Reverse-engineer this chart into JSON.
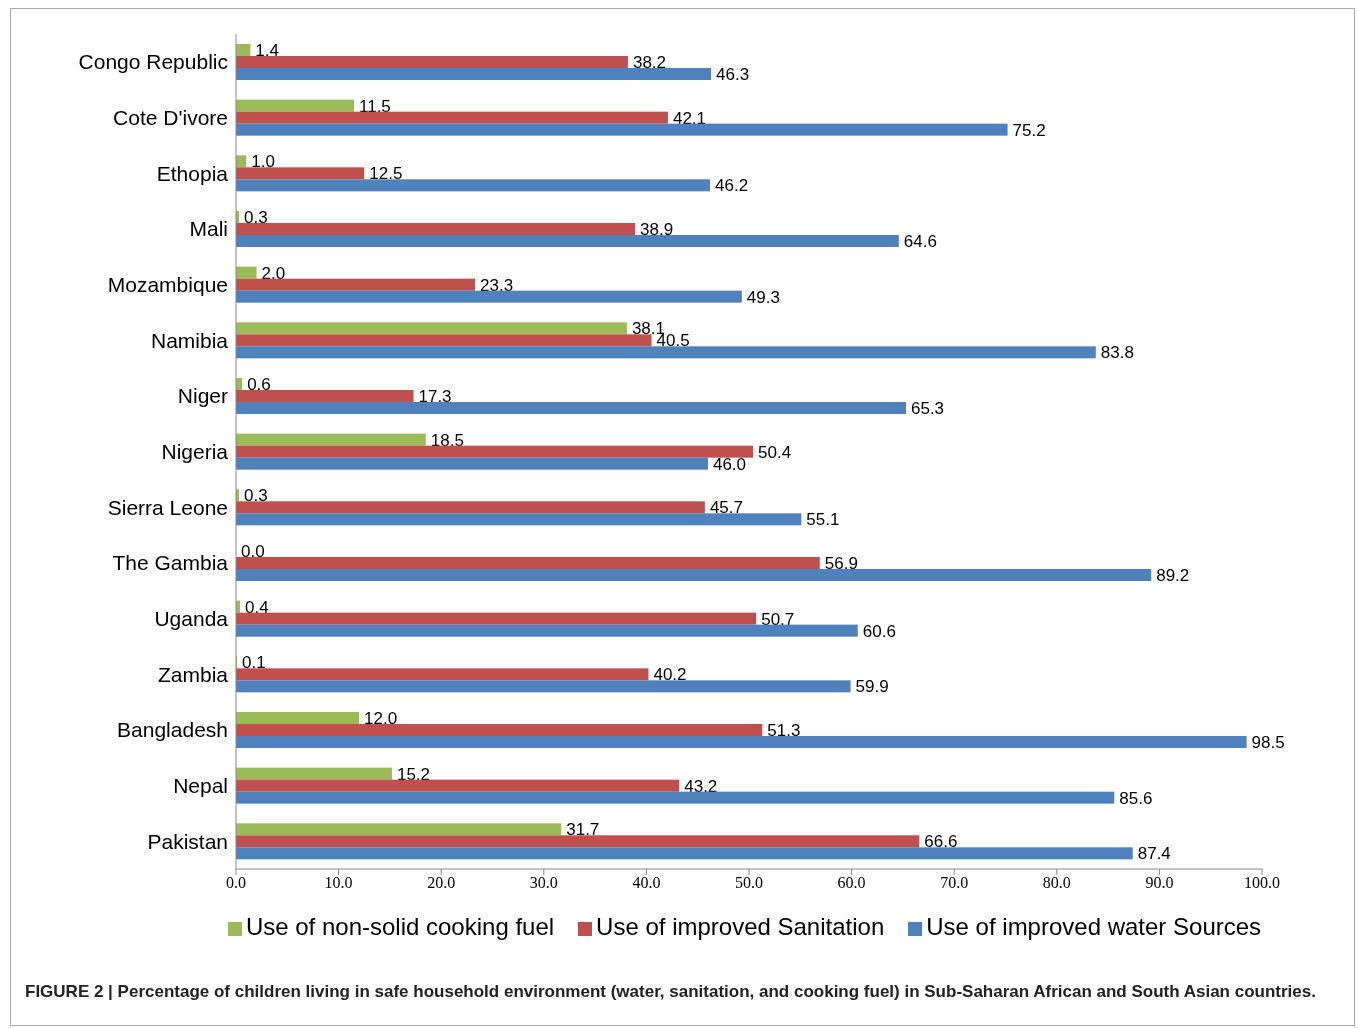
{
  "chart_data": {
    "type": "bar",
    "orientation": "horizontal",
    "categories": [
      "Congo Republic",
      "Cote D'ivore",
      "Ethopia",
      "Mali",
      "Mozambique",
      "Namibia",
      "Niger",
      "Nigeria",
      "Sierra Leone",
      "The Gambia",
      "Uganda",
      "Zambia",
      "Bangladesh",
      "Nepal",
      "Pakistan"
    ],
    "series": [
      {
        "name": "Use of non-solid cooking fuel",
        "color": "#9bbb59",
        "values": [
          1.4,
          11.5,
          1.0,
          0.3,
          2.0,
          38.1,
          0.6,
          18.5,
          0.3,
          0.0,
          0.4,
          0.1,
          12.0,
          15.2,
          31.7
        ],
        "value_labels": [
          "1.4",
          "11.5",
          "1.0",
          "0.3",
          "2.0",
          "38.1",
          "0.6",
          "18.5",
          "0.3",
          "0.0",
          "0.4",
          "0.1",
          "12.0",
          "15.2",
          "31.7"
        ]
      },
      {
        "name": "Use of improved  Sanitation",
        "color": "#c0504d",
        "values": [
          38.2,
          42.1,
          12.5,
          38.9,
          23.3,
          40.5,
          17.3,
          50.4,
          45.7,
          56.9,
          50.7,
          40.2,
          51.3,
          43.2,
          66.6
        ],
        "value_labels": [
          "38.2",
          "42.1",
          "12.5",
          "38.9",
          "23.3",
          "40.5",
          "17.3",
          "50.4",
          "45.7",
          "56.9",
          "50.7",
          "40.2",
          "51.3",
          "43.2",
          "66.6"
        ]
      },
      {
        "name": "Use of improved water Sources",
        "color": "#4f81bd",
        "values": [
          46.3,
          75.2,
          46.2,
          64.6,
          49.3,
          83.8,
          65.3,
          46.0,
          55.1,
          89.2,
          60.6,
          59.9,
          98.5,
          85.6,
          87.4
        ],
        "value_labels": [
          "46.3",
          "75.2",
          "46.2",
          "64.6",
          "49.3",
          "83.8",
          "65.3",
          "46.0",
          "55.1",
          "89.2",
          "60.6",
          "59.9",
          "98.5",
          "85.6",
          "87.4"
        ]
      }
    ],
    "xlim": [
      0,
      100
    ],
    "xticks": [
      {
        "value": 0,
        "label": "0.0"
      },
      {
        "value": 10,
        "label": "10.0"
      },
      {
        "value": 20,
        "label": "20.0"
      },
      {
        "value": 30,
        "label": "30.0"
      },
      {
        "value": 40,
        "label": "40.0"
      },
      {
        "value": 50,
        "label": "50.0"
      },
      {
        "value": 60,
        "label": "60.0"
      },
      {
        "value": 70,
        "label": "70.0"
      },
      {
        "value": 80,
        "label": "80.0"
      },
      {
        "value": 90,
        "label": "90.0"
      },
      {
        "value": 100,
        "label": "100.0"
      }
    ],
    "legend": "bottom",
    "annotations": [
      "FIGURE 2 | Percentage of children living in safe household environment (water, sanitation, and cooking fuel) in Sub-Saharan African and South Asian countries."
    ]
  }
}
